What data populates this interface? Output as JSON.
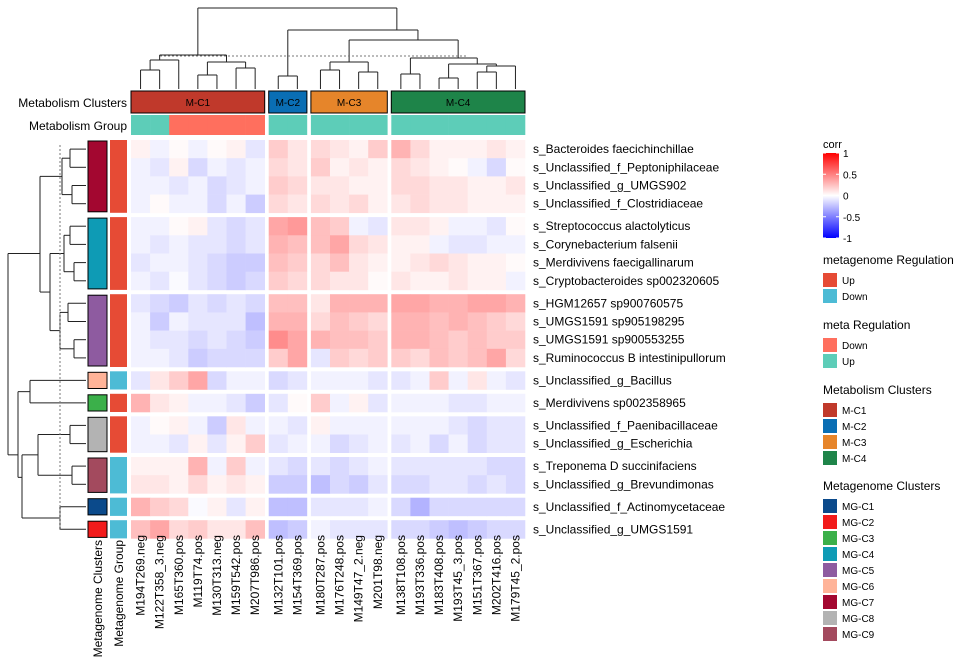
{
  "chart_data": {
    "type": "heatmap",
    "row_labels": [
      "s_Bacteroides faecichinchillae",
      "s_Unclassified_f_Peptoniphilaceae",
      "s_Unclassified_g_UMGS902",
      "s_Unclassified_f_Clostridiaceae",
      "s_Streptococcus alactolyticus",
      "s_Corynebacterium falsenii",
      "s_Merdivivens faecigallinarum",
      "s_Cryptobacteroides sp002320605",
      "s_HGM12657 sp900760575",
      "s_UMGS1591 sp905198295",
      "s_UMGS1591 sp900553255",
      "s_Ruminococcus B intestinipullorum",
      "s_Unclassified_g_Bacillus",
      "s_Merdivivens sp002358965",
      "s_Unclassified_f_Paenibacillaceae",
      "s_Unclassified_g_Escherichia",
      "s_Treponema D succinifaciens",
      "s_Unclassified_g_Brevundimonas",
      "s_Unclassified_f_Actinomycetaceae",
      "s_Unclassified_g_UMGS1591"
    ],
    "row_split_sizes": [
      4,
      4,
      4,
      1,
      1,
      2,
      2,
      1,
      1
    ],
    "row_clusters": [
      "MG-C7",
      "MG-C4",
      "MG-C5",
      "MG-C6",
      "MG-C3",
      "MG-C8",
      "MG-C9",
      "MG-C1",
      "MG-C2"
    ],
    "row_regulation": [
      "Up",
      "Up",
      "Up",
      "Down",
      "Up",
      "Up",
      "Down",
      "Down",
      "Down"
    ],
    "col_labels": [
      "M194T269.neg",
      "M122T358_3.neg",
      "M165T360.pos",
      "M119T74.pos",
      "M130T313.neg",
      "M159T542.pos",
      "M207T986.pos",
      "M132T101.pos",
      "M154T369.pos",
      "M180T287.pos",
      "M176T248.pos",
      "M149T47_2.neg",
      "M201T98.neg",
      "M138T108.pos",
      "M193T336.pos",
      "M183T408.pos",
      "M193T45_3.pos",
      "M151T367.pos",
      "M202T416.pos",
      "M179T45_2.pos"
    ],
    "col_split_sizes": [
      7,
      2,
      4,
      7
    ],
    "col_clusters": [
      "M-C1",
      "M-C2",
      "M-C3",
      "M-C4"
    ],
    "col_group": [
      "Up",
      "Up",
      "Down",
      "Down",
      "Down",
      "Down",
      "Down",
      "Up",
      "Up",
      "Up",
      "Up",
      "Up",
      "Up",
      "Up",
      "Up",
      "Up",
      "Up",
      "Up",
      "Up",
      "Up"
    ],
    "values": [
      [
        0.05,
        -0.05,
        0.02,
        -0.05,
        0.02,
        0.05,
        -0.1,
        0.2,
        0.1,
        0.15,
        0.1,
        0.05,
        0.2,
        0.3,
        0.15,
        0.05,
        0.05,
        0.05,
        0.1,
        0.05
      ],
      [
        -0.05,
        -0.1,
        0.05,
        -0.15,
        -0.05,
        -0.1,
        -0.05,
        0.15,
        0.1,
        0.2,
        0.05,
        0.1,
        0.05,
        0.15,
        0.1,
        0.05,
        0.02,
        -0.05,
        -0.15,
        0.02
      ],
      [
        -0.05,
        -0.05,
        -0.1,
        -0.05,
        -0.15,
        -0.1,
        -0.05,
        0.2,
        0.15,
        0.1,
        0.1,
        0.05,
        0.05,
        0.15,
        0.15,
        0.1,
        0.1,
        0.05,
        0.05,
        0.1
      ],
      [
        -0.05,
        0.02,
        -0.05,
        -0.05,
        -0.15,
        -0.05,
        -0.2,
        0.15,
        0.1,
        0.15,
        0.1,
        0.15,
        0.05,
        0.1,
        0.15,
        0.1,
        0.1,
        0.05,
        0.05,
        0.05
      ],
      [
        -0.05,
        -0.05,
        0.02,
        0.05,
        -0.1,
        -0.15,
        -0.1,
        0.35,
        0.4,
        0.25,
        0.2,
        -0.05,
        -0.1,
        0.1,
        0.1,
        0.05,
        -0.05,
        -0.05,
        -0.1,
        0.02
      ],
      [
        -0.05,
        -0.1,
        -0.05,
        -0.1,
        -0.1,
        -0.15,
        -0.1,
        0.3,
        0.25,
        0.25,
        0.35,
        0.15,
        0.1,
        0.05,
        0.05,
        -0.05,
        -0.1,
        -0.1,
        -0.05,
        -0.05
      ],
      [
        -0.1,
        -0.05,
        -0.05,
        -0.1,
        -0.15,
        -0.2,
        -0.2,
        0.25,
        0.2,
        0.15,
        0.25,
        0.1,
        0.05,
        0.05,
        0.1,
        0.15,
        0.1,
        0.05,
        0.05,
        0.02
      ],
      [
        -0.05,
        -0.1,
        -0.02,
        -0.1,
        -0.15,
        -0.2,
        -0.15,
        0.2,
        0.15,
        0.15,
        0.1,
        0.1,
        0.02,
        0.1,
        0.05,
        0.05,
        0.1,
        0.05,
        0.05,
        -0.05
      ],
      [
        -0.1,
        -0.15,
        -0.2,
        -0.1,
        -0.15,
        -0.1,
        -0.15,
        0.25,
        0.25,
        0.1,
        0.3,
        0.3,
        0.3,
        0.35,
        0.35,
        0.3,
        0.3,
        0.35,
        0.35,
        0.3
      ],
      [
        -0.05,
        -0.2,
        -0.05,
        -0.1,
        -0.1,
        -0.1,
        -0.25,
        0.3,
        0.3,
        0.15,
        0.25,
        0.2,
        0.15,
        0.3,
        0.3,
        0.25,
        0.3,
        0.25,
        0.2,
        0.15
      ],
      [
        -0.05,
        -0.1,
        -0.1,
        -0.15,
        -0.1,
        -0.15,
        -0.2,
        0.45,
        0.35,
        0.3,
        0.25,
        0.25,
        0.2,
        0.3,
        0.3,
        0.25,
        0.2,
        0.25,
        0.2,
        0.2
      ],
      [
        -0.05,
        -0.05,
        -0.1,
        -0.2,
        -0.15,
        -0.15,
        -0.15,
        0.2,
        0.35,
        -0.1,
        0.2,
        0.15,
        0.2,
        0.2,
        0.15,
        0.25,
        0.2,
        0.25,
        0.35,
        0.15
      ],
      [
        -0.1,
        0.1,
        0.2,
        0.35,
        -0.15,
        -0.05,
        -0.05,
        -0.15,
        -0.1,
        -0.05,
        -0.05,
        -0.05,
        -0.1,
        -0.1,
        -0.05,
        0.2,
        -0.05,
        0.1,
        -0.05,
        -0.1
      ],
      [
        0.3,
        0.1,
        0.05,
        -0.05,
        -0.05,
        -0.1,
        -0.2,
        -0.1,
        0.02,
        0.2,
        -0.05,
        0.05,
        -0.1,
        -0.05,
        -0.05,
        -0.05,
        -0.1,
        -0.1,
        -0.05,
        -0.05
      ],
      [
        -0.05,
        0.02,
        0.05,
        -0.05,
        -0.2,
        0.1,
        -0.05,
        -0.05,
        -0.1,
        0.05,
        -0.05,
        -0.05,
        -0.05,
        -0.05,
        -0.05,
        -0.05,
        -0.1,
        -0.15,
        -0.1,
        -0.1
      ],
      [
        -0.05,
        -0.05,
        -0.1,
        0.05,
        -0.1,
        0.05,
        0.2,
        -0.1,
        -0.05,
        -0.05,
        -0.15,
        -0.1,
        -0.05,
        -0.1,
        -0.05,
        -0.15,
        -0.05,
        -0.15,
        -0.1,
        -0.1
      ],
      [
        0.05,
        0.05,
        0.05,
        0.3,
        -0.05,
        0.2,
        -0.05,
        -0.1,
        -0.15,
        -0.1,
        -0.15,
        -0.1,
        -0.05,
        -0.1,
        -0.1,
        -0.1,
        -0.1,
        -0.1,
        -0.15,
        -0.15
      ],
      [
        0.1,
        0.1,
        0.05,
        0.15,
        0.05,
        0.1,
        0.05,
        -0.2,
        -0.2,
        -0.25,
        -0.15,
        -0.2,
        -0.1,
        -0.15,
        -0.15,
        -0.1,
        -0.1,
        -0.15,
        -0.1,
        -0.15
      ],
      [
        0.3,
        0.2,
        0.15,
        -0.02,
        0.05,
        -0.1,
        0.05,
        -0.25,
        -0.25,
        -0.1,
        -0.1,
        -0.1,
        -0.05,
        -0.15,
        -0.3,
        -0.15,
        -0.15,
        -0.15,
        -0.15,
        -0.15
      ],
      [
        0.25,
        0.35,
        0.15,
        0.2,
        0.1,
        0.1,
        0.25,
        -0.25,
        -0.2,
        -0.05,
        -0.1,
        -0.1,
        -0.1,
        -0.15,
        -0.15,
        -0.2,
        -0.25,
        -0.2,
        -0.15,
        -0.15
      ]
    ],
    "row_annotation_titles": [
      "Metagenome Clusters",
      "Metagenome Group"
    ],
    "col_annotation_titles": [
      "Metabolism Clusters",
      "Metabolism Group"
    ],
    "color_scale": {
      "title": "corr",
      "min": -1,
      "max": 1,
      "ticks": [
        1,
        0.5,
        0,
        -0.5,
        -1
      ],
      "tick_labels": [
        "1",
        "0.5",
        "0",
        "-0.5",
        "-1"
      ],
      "low_color": "#0000ff",
      "mid_color": "#ffffff",
      "high_color": "#ff0000"
    },
    "legends": [
      {
        "title": "metagenome Regulation",
        "entries": [
          {
            "label": "Up",
            "color": "#E64B35"
          },
          {
            "label": "Down",
            "color": "#4DBBD5"
          }
        ]
      },
      {
        "title": "meta Regulation",
        "entries": [
          {
            "label": "Down",
            "color": "#FF6F5E"
          },
          {
            "label": "Up",
            "color": "#5DCDB8"
          }
        ]
      },
      {
        "title": "Metabolism Clusters",
        "entries": [
          {
            "label": "M-C1",
            "color": "#C0392B"
          },
          {
            "label": "M-C2",
            "color": "#0A6EB4"
          },
          {
            "label": "M-C3",
            "color": "#E6852A"
          },
          {
            "label": "M-C4",
            "color": "#1E8449"
          }
        ]
      },
      {
        "title": "Metagenome Clusters",
        "entries": [
          {
            "label": "MG-C1",
            "color": "#0B4A8B"
          },
          {
            "label": "MG-C2",
            "color": "#F21B1B"
          },
          {
            "label": "MG-C3",
            "color": "#3BB04A"
          },
          {
            "label": "MG-C4",
            "color": "#0E9BB5"
          },
          {
            "label": "MG-C5",
            "color": "#8E5BA0"
          },
          {
            "label": "MG-C6",
            "color": "#FFB398"
          },
          {
            "label": "MG-C7",
            "color": "#A30730"
          },
          {
            "label": "MG-C8",
            "color": "#B3B3B3"
          },
          {
            "label": "MG-C9",
            "color": "#A34A5E"
          }
        ]
      }
    ],
    "colors": {
      "regulation_up": "#E64B35",
      "regulation_down": "#4DBBD5",
      "meta_down": "#FF6F5E",
      "meta_up": "#5DCDB8"
    }
  }
}
